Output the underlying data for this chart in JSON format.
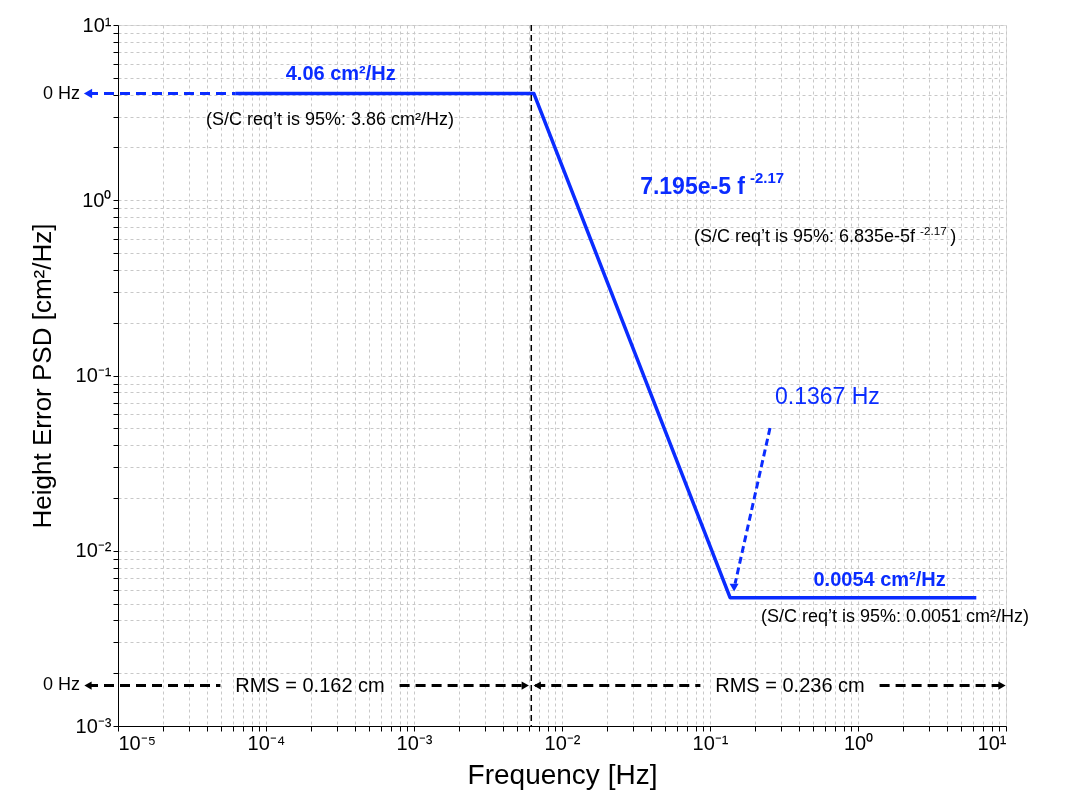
{
  "chart_data": {
    "type": "line",
    "xlabel": "Frequency [Hz]",
    "ylabel": "Height Error PSD [cm²/Hz]",
    "series": [
      {
        "color": "#0a2cff",
        "x": [
          6.2e-05,
          0.00646,
          0.1367,
          6.3
        ],
        "values": [
          4.06,
          4.06,
          0.0054,
          0.0054
        ]
      }
    ],
    "log": "xy",
    "grid": true,
    "line_style": "solid",
    "marker": "none",
    "xlim": [
      1e-05,
      10
    ],
    "ylim": [
      0.001,
      10
    ],
    "xticks": [
      {
        "value": 1e-05,
        "label": "10⁻⁵"
      },
      {
        "value": 2e-05,
        "label": null
      },
      {
        "value": 3e-05,
        "label": null
      },
      {
        "value": 4e-05,
        "label": null
      },
      {
        "value": 5e-05,
        "label": null
      },
      {
        "value": 6e-05,
        "label": null
      },
      {
        "value": 7e-05,
        "label": null
      },
      {
        "value": 8e-05,
        "label": null
      },
      {
        "value": 9e-05,
        "label": null
      },
      {
        "value": 0.0001,
        "label": "10⁻⁴"
      },
      {
        "value": 0.0002,
        "label": null
      },
      {
        "value": 0.0003,
        "label": null
      },
      {
        "value": 0.0004,
        "label": null
      },
      {
        "value": 0.0005,
        "label": null
      },
      {
        "value": 0.0006,
        "label": null
      },
      {
        "value": 0.0007,
        "label": null
      },
      {
        "value": 0.0008,
        "label": null
      },
      {
        "value": 0.0009,
        "label": null
      },
      {
        "value": 0.001,
        "label": "10⁻³"
      },
      {
        "value": 0.002,
        "label": null
      },
      {
        "value": 0.003,
        "label": null
      },
      {
        "value": 0.004,
        "label": null
      },
      {
        "value": 0.005,
        "label": null
      },
      {
        "value": 0.006,
        "label": null
      },
      {
        "value": 0.007,
        "label": null
      },
      {
        "value": 0.008,
        "label": null
      },
      {
        "value": 0.009,
        "label": null
      },
      {
        "value": 0.01,
        "label": "10⁻²"
      },
      {
        "value": 0.02,
        "label": null
      },
      {
        "value": 0.03,
        "label": null
      },
      {
        "value": 0.04,
        "label": null
      },
      {
        "value": 0.05,
        "label": null
      },
      {
        "value": 0.06,
        "label": null
      },
      {
        "value": 0.07,
        "label": null
      },
      {
        "value": 0.08,
        "label": null
      },
      {
        "value": 0.09,
        "label": null
      },
      {
        "value": 0.1,
        "label": "10⁻¹"
      },
      {
        "value": 0.2,
        "label": null
      },
      {
        "value": 0.3,
        "label": null
      },
      {
        "value": 0.4,
        "label": null
      },
      {
        "value": 0.5,
        "label": null
      },
      {
        "value": 0.6,
        "label": null
      },
      {
        "value": 0.7,
        "label": null
      },
      {
        "value": 0.8,
        "label": null
      },
      {
        "value": 0.9,
        "label": null
      },
      {
        "value": 1,
        "label": "10⁰"
      },
      {
        "value": 2,
        "label": null
      },
      {
        "value": 3,
        "label": null
      },
      {
        "value": 4,
        "label": null
      },
      {
        "value": 5,
        "label": null
      },
      {
        "value": 6,
        "label": null
      },
      {
        "value": 7,
        "label": null
      },
      {
        "value": 8,
        "label": null
      },
      {
        "value": 9,
        "label": null
      },
      {
        "value": 10,
        "label": "10¹"
      }
    ],
    "yticks": [
      {
        "value": 0.001,
        "label": "10⁻³"
      },
      {
        "value": 0.002,
        "label": null
      },
      {
        "value": 0.003,
        "label": null
      },
      {
        "value": 0.004,
        "label": null
      },
      {
        "value": 0.005,
        "label": null
      },
      {
        "value": 0.006,
        "label": null
      },
      {
        "value": 0.007,
        "label": null
      },
      {
        "value": 0.008,
        "label": null
      },
      {
        "value": 0.009,
        "label": null
      },
      {
        "value": 0.01,
        "label": "10⁻²"
      },
      {
        "value": 0.02,
        "label": null
      },
      {
        "value": 0.03,
        "label": null
      },
      {
        "value": 0.04,
        "label": null
      },
      {
        "value": 0.05,
        "label": null
      },
      {
        "value": 0.06,
        "label": null
      },
      {
        "value": 0.07,
        "label": null
      },
      {
        "value": 0.08,
        "label": null
      },
      {
        "value": 0.09,
        "label": null
      },
      {
        "value": 0.1,
        "label": "10⁻¹"
      },
      {
        "value": 0.2,
        "label": null
      },
      {
        "value": 0.3,
        "label": null
      },
      {
        "value": 0.4,
        "label": null
      },
      {
        "value": 0.5,
        "label": null
      },
      {
        "value": 0.6,
        "label": null
      },
      {
        "value": 0.7,
        "label": null
      },
      {
        "value": 0.8,
        "label": null
      },
      {
        "value": 0.9,
        "label": null
      },
      {
        "value": 1,
        "label": "10⁰"
      },
      {
        "value": 2,
        "label": null
      },
      {
        "value": 3,
        "label": null
      },
      {
        "value": 4,
        "label": null
      },
      {
        "value": 5,
        "label": null
      },
      {
        "value": 6,
        "label": null
      },
      {
        "value": 7,
        "label": null
      },
      {
        "value": 8,
        "label": null
      },
      {
        "value": 9,
        "label": null
      },
      {
        "value": 10,
        "label": "10¹"
      }
    ],
    "ref_lines": [
      {
        "axis": "x",
        "value": 0.0062,
        "color": "#000000",
        "line_style": "dashed"
      }
    ],
    "annotations": [
      {
        "text": "4.06 cm²/Hz",
        "x": 0.00032,
        "y": 4.06
      },
      "(S/C req’t is 95%: 3.86 cm²/Hz)",
      "7.195e-5 f$^{-2.17}$",
      "(S/C req’t is 95%: 6.835e-5f$^{-2.17}$)",
      "0.1367 Hz",
      {
        "text": "0.0054 cm²/Hz",
        "x": 1.4,
        "y": 0.0054
      },
      "(S/C req’t is 95%: 0.0051 cm²/Hz)",
      "0 Hz",
      "0 Hz",
      {
        "text": "RMS = 0.162 cm",
        "x": 0.0062,
        "y": 0.0017
      },
      {
        "text": "RMS = 0.236 cm",
        "x": 0.0062,
        "y": 0.0017
      }
    ]
  }
}
